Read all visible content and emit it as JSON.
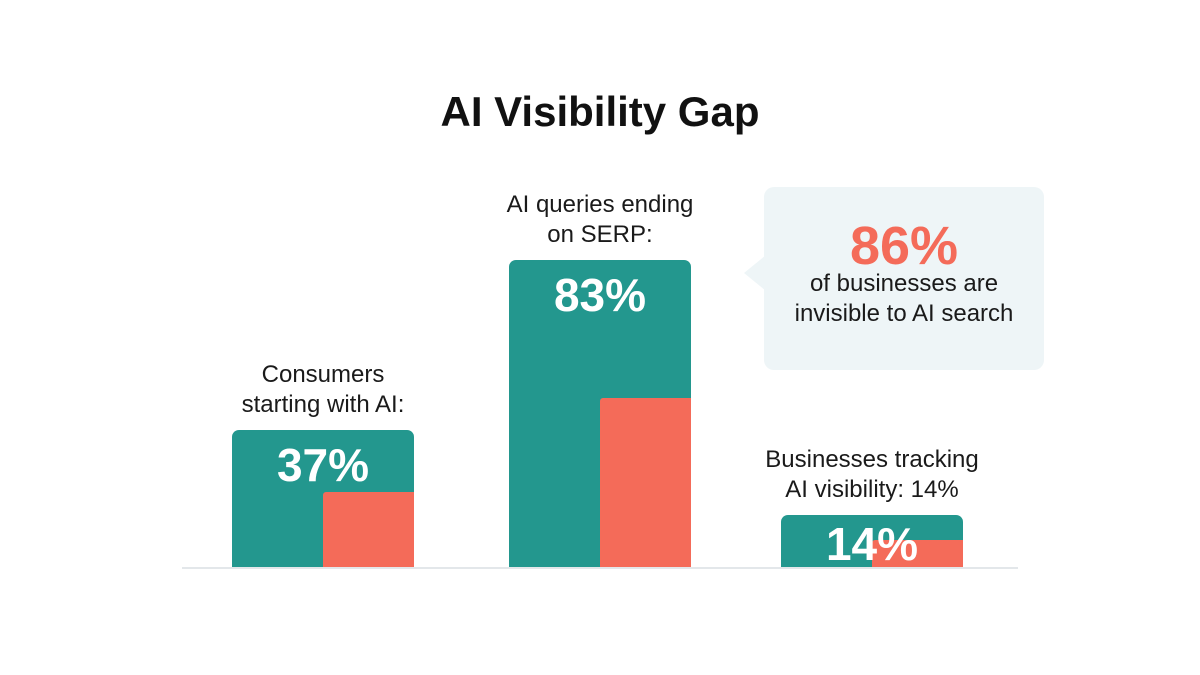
{
  "colors": {
    "teal": "#23978e",
    "coral": "#f46b59",
    "callout_bg": "#eef5f7",
    "text": "#111111"
  },
  "chart_data": {
    "type": "bar",
    "title": "AI Visibility Gap",
    "ylim": [
      0,
      100
    ],
    "grid": false,
    "categories": [
      "Consumers starting with AI:",
      "AI queries ending on SERP:",
      "Businesses tracking AI visibility: 14%"
    ],
    "labels": [
      "Consumers\nstarting with AI:",
      "AI queries ending\non SERP:",
      "Businesses tracking\nAI visibility: 14%"
    ],
    "values": [
      37,
      83,
      14
    ],
    "value_labels": [
      "37%",
      "83%",
      "14%"
    ]
  },
  "callout": {
    "value": "86%",
    "text": "of businesses are\ninvisible to AI search"
  }
}
